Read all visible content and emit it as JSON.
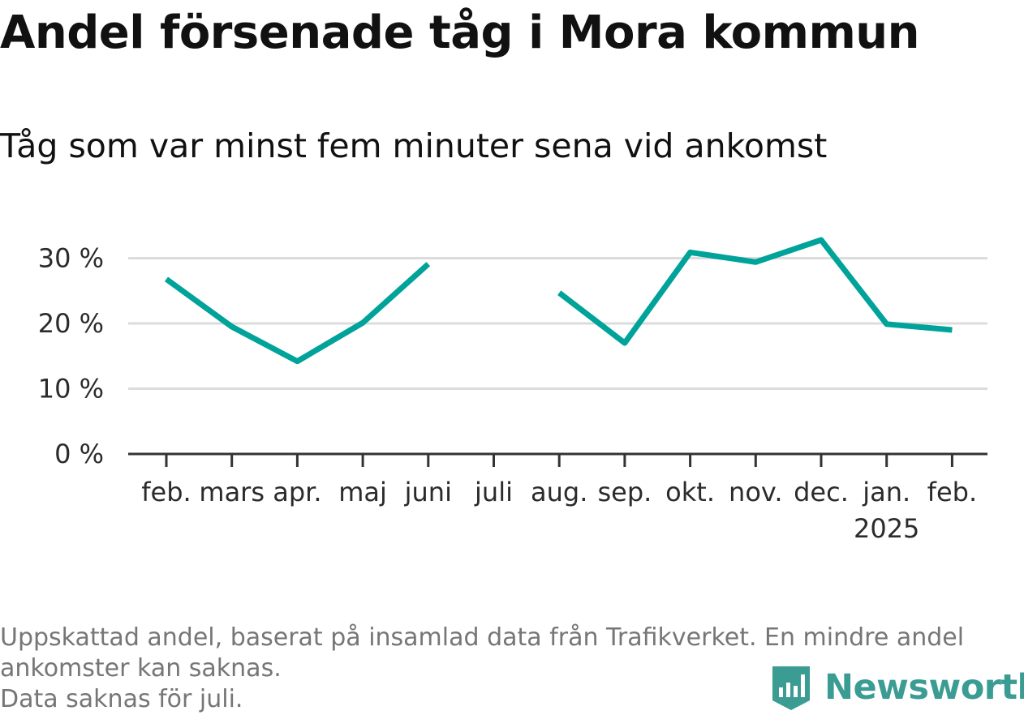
{
  "title": "Andel försenade tåg i Mora kommun",
  "subtitle": "Tåg som var minst fem minuter sena vid ankomst",
  "notes": {
    "line1": "Uppskattad andel, baserat på insamlad data från Trafikverket. En mindre andel",
    "line2": "ankomster kan saknas.",
    "line3": "Data saknas för juli."
  },
  "logo": {
    "text": "Newsworthy",
    "color": "#3a9c93"
  },
  "chart_data": {
    "type": "line",
    "title": "Andel försenade tåg i Mora kommun",
    "subtitle": "Tåg som var minst fem minuter sena vid ankomst",
    "categories": [
      "feb.",
      "mars",
      "apr.",
      "maj",
      "juni",
      "juli",
      "aug.",
      "sep.",
      "okt.",
      "nov.",
      "dec.",
      "jan.",
      "feb."
    ],
    "category_sublabels": [
      "",
      "",
      "",
      "",
      "",
      "",
      "",
      "",
      "",
      "",
      "",
      "2025",
      ""
    ],
    "series": [
      {
        "color": "#00a39a",
        "values": [
          26.8,
          19.5,
          14.2,
          20.1,
          29.1,
          null,
          24.7,
          17.0,
          30.9,
          29.4,
          32.8,
          19.9,
          19.0
        ]
      }
    ],
    "ylim": [
      0,
      35
    ],
    "yticks": [
      0,
      10,
      20,
      30
    ],
    "ytick_labels": [
      "0 %",
      "10 %",
      "20 %",
      "30 %"
    ],
    "grid": true,
    "xlabel": "",
    "ylabel": ""
  }
}
